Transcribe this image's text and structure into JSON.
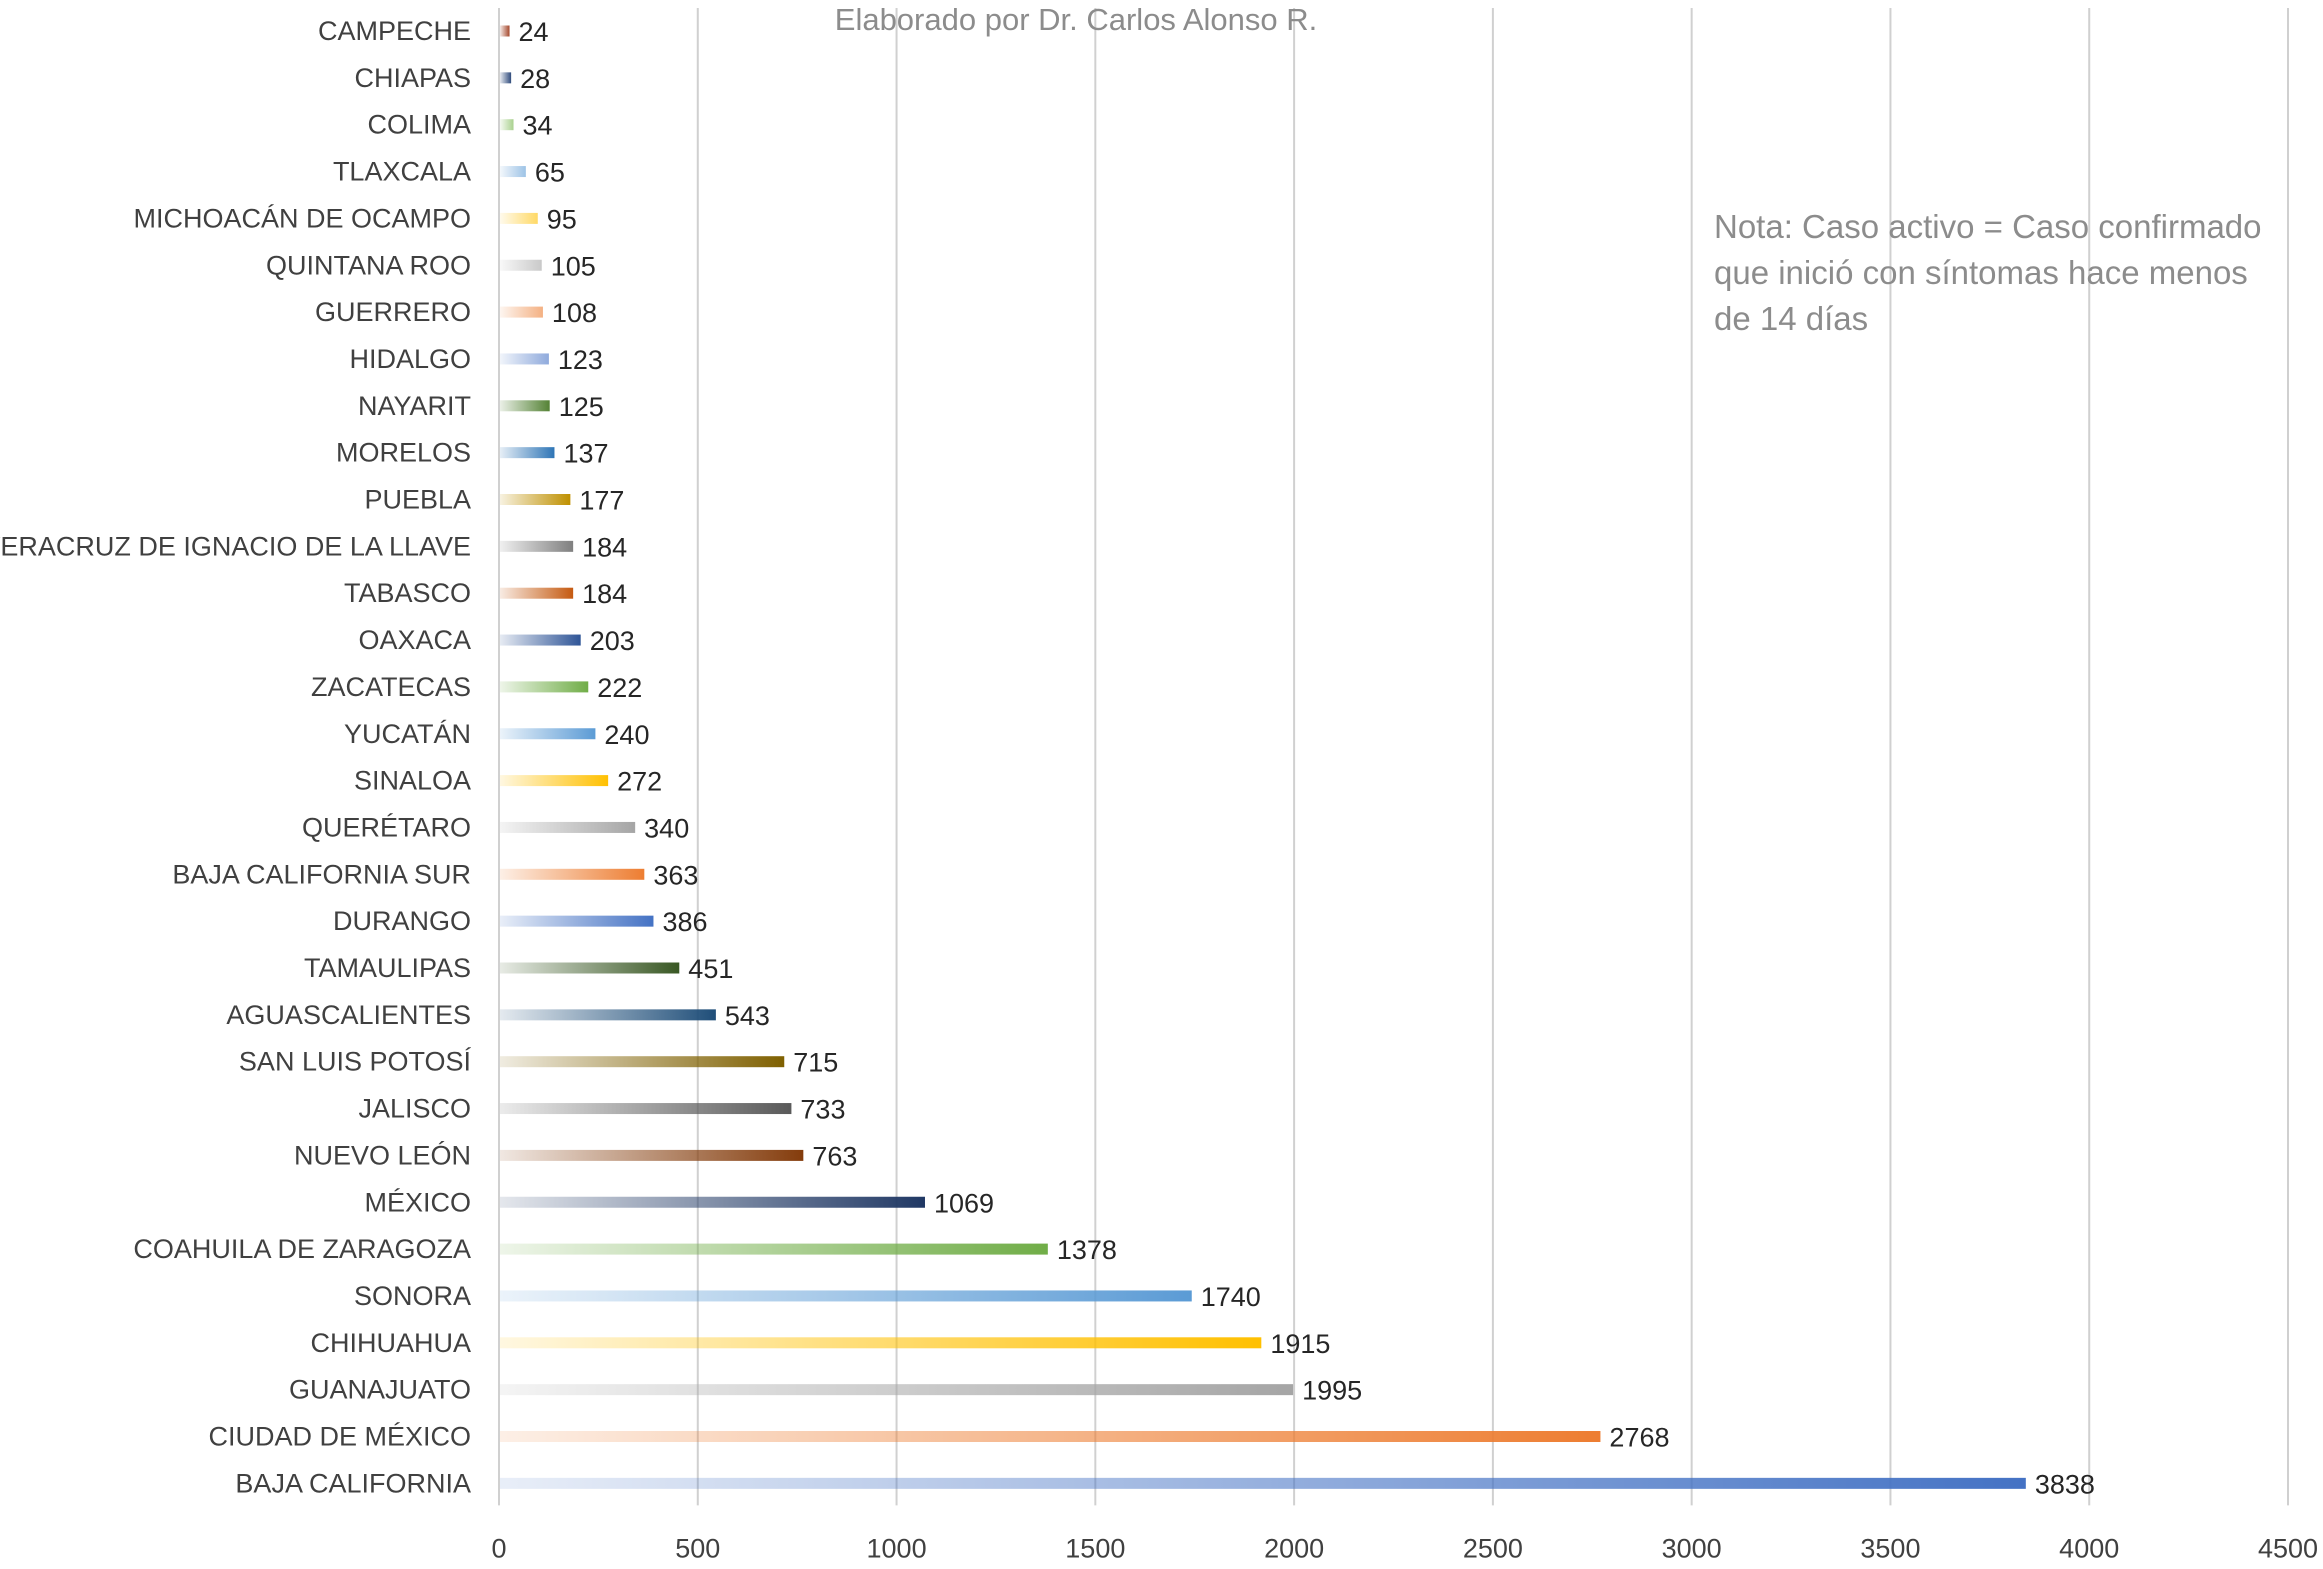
{
  "header": {
    "credit": "Elaborado por Dr. Carlos Alonso R."
  },
  "note": {
    "lines": [
      "Nota: Caso activo = Caso confirmado",
      "que inició con síntomas hace menos",
      "de 14 días"
    ]
  },
  "chart_data": {
    "type": "bar",
    "orientation": "horizontal",
    "title": "",
    "xlabel": "",
    "ylabel": "",
    "xlim": [
      0,
      4500
    ],
    "xticks": [
      0,
      500,
      1000,
      1500,
      2000,
      2500,
      3000,
      3500,
      4000,
      4500
    ],
    "grid": "vertical",
    "legend": "none",
    "categories": [
      "CAMPECHE",
      "CHIAPAS",
      "COLIMA",
      "TLAXCALA",
      "MICHOACÁN DE OCAMPO",
      "QUINTANA ROO",
      "GUERRERO",
      "HIDALGO",
      "NAYARIT",
      "MORELOS",
      "PUEBLA",
      "VERACRUZ DE IGNACIO DE LA LLAVE",
      "TABASCO",
      "OAXACA",
      "ZACATECAS",
      "YUCATÁN",
      "SINALOA",
      "QUERÉTARO",
      "BAJA CALIFORNIA SUR",
      "DURANGO",
      "TAMAULIPAS",
      "AGUASCALIENTES",
      "SAN LUIS POTOSÍ",
      "JALISCO",
      "NUEVO LEÓN",
      "MÉXICO",
      "COAHUILA DE ZARAGOZA",
      "SONORA",
      "CHIHUAHUA",
      "GUANAJUATO",
      "CIUDAD DE MÉXICO",
      "BAJA CALIFORNIA"
    ],
    "values": [
      24,
      28,
      34,
      65,
      95,
      105,
      108,
      123,
      125,
      137,
      177,
      184,
      184,
      203,
      222,
      240,
      272,
      340,
      363,
      386,
      451,
      543,
      715,
      733,
      763,
      1069,
      1378,
      1740,
      1915,
      1995,
      2768,
      3838
    ],
    "colors": [
      "#a5482c",
      "#2f4b7c",
      "#a9d18e",
      "#9dc3e6",
      "#ffd966",
      "#c9c9c9",
      "#f4b183",
      "#8faadc",
      "#548235",
      "#2e75b6",
      "#bf9000",
      "#7f7f7f",
      "#c55a11",
      "#2f5597",
      "#70ad47",
      "#5b9bd5",
      "#ffc000",
      "#a5a5a5",
      "#ed7d31",
      "#4472c4",
      "#385723",
      "#1f4e79",
      "#7f6000",
      "#595959",
      "#843c0c",
      "#203864",
      "#70ad47",
      "#5b9bd5",
      "#ffc000",
      "#a5a5a5",
      "#ed7d31",
      "#4472c4"
    ]
  }
}
